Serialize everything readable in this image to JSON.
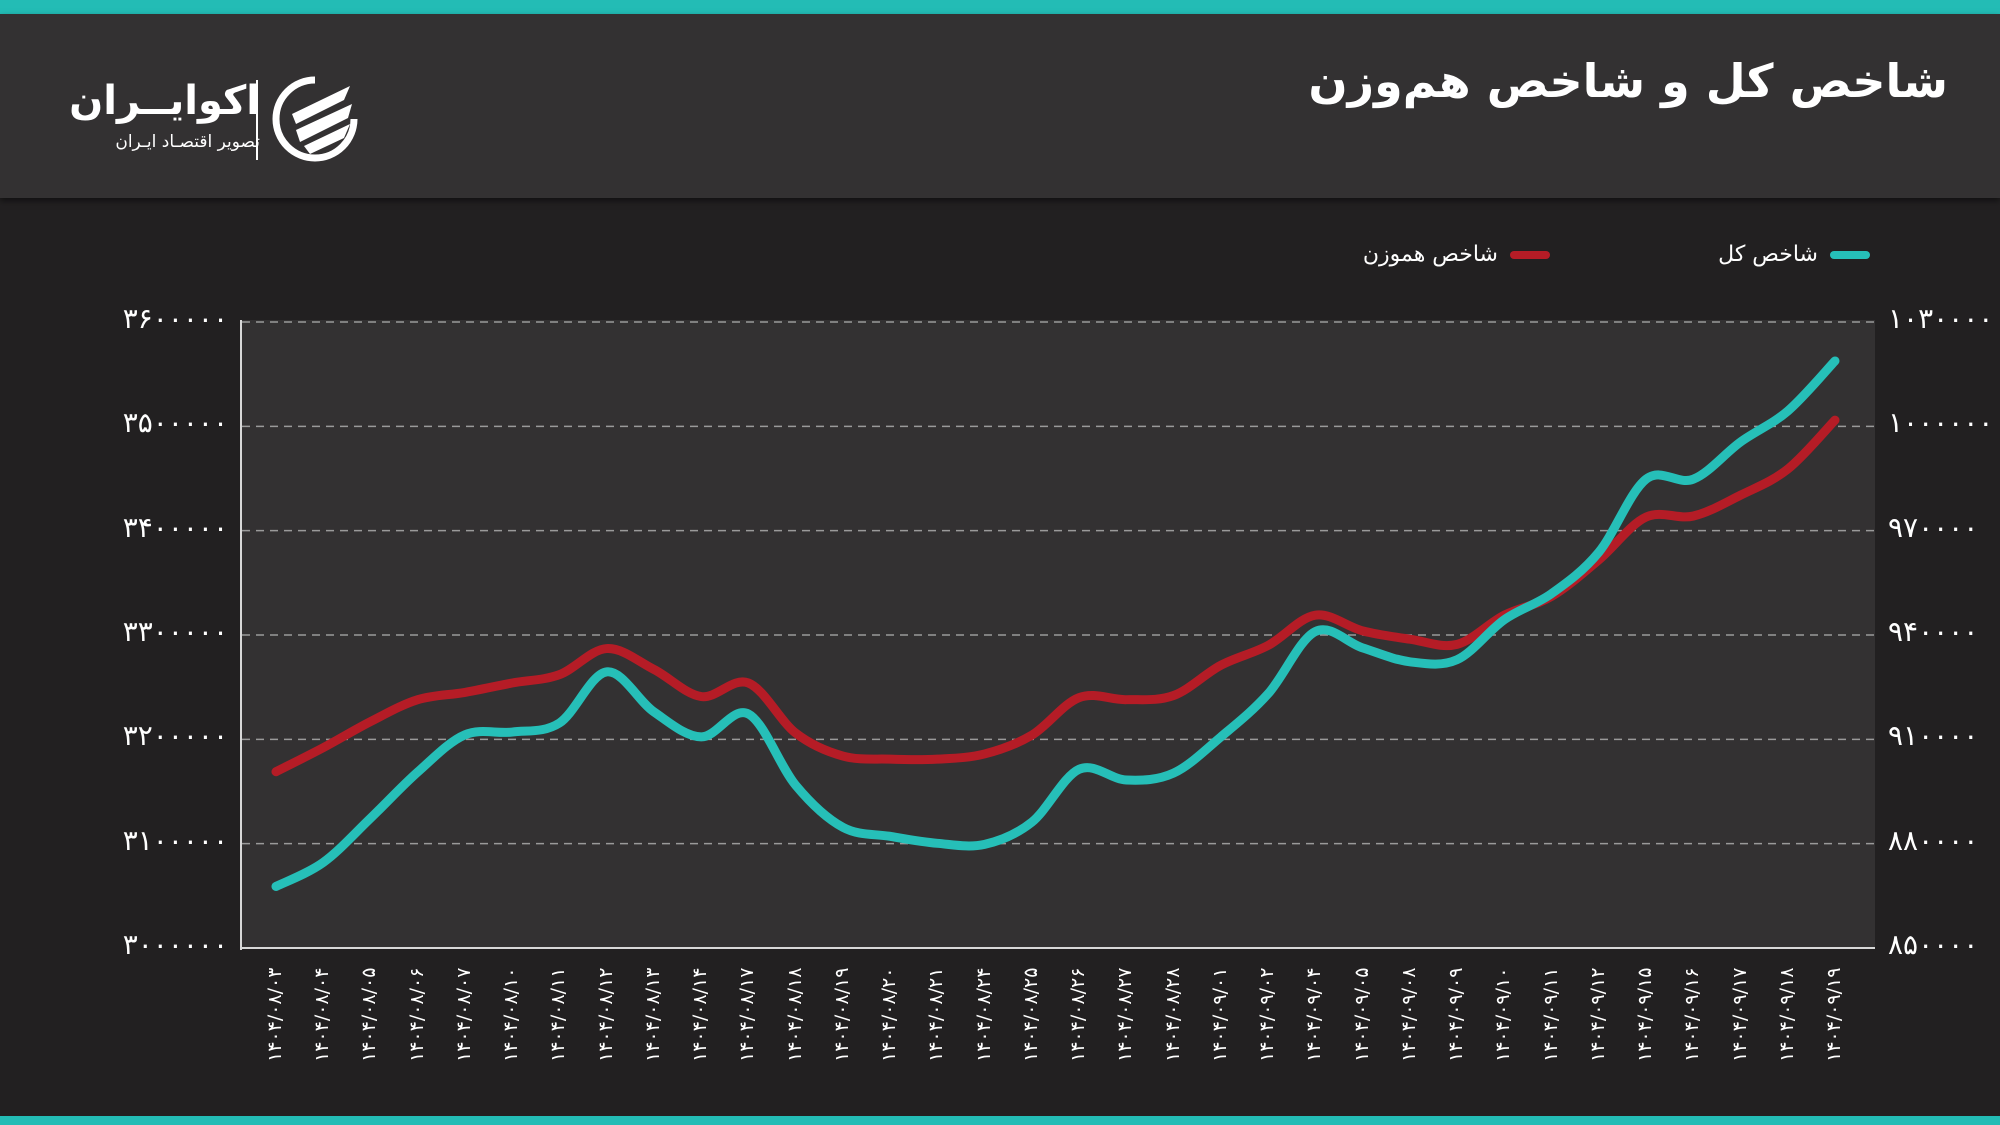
{
  "header": {
    "title": "شاخص کل و شاخص هم‌وزن",
    "logo_name": "اکوایــران",
    "logo_tagline": "تصویر اقتصـاد ایـران",
    "logo_icon": "ecoiran-logo-icon"
  },
  "colors": {
    "accent_stripe": "#23bcb5",
    "series_total": "#26bfb8",
    "series_equal_weight": "#b51c26",
    "header_bg": "#333132",
    "page_bg": "#222021",
    "plot_bg": "#333132"
  },
  "legend": [
    {
      "label": "شاخص کل",
      "color": "#26bfb8"
    },
    {
      "label": "شاخص هموزن",
      "color": "#b51c26"
    }
  ],
  "axes": {
    "left_ticks": [
      "۳۶۰۰۰۰۰",
      "۳۵۰۰۰۰۰",
      "۳۴۰۰۰۰۰",
      "۳۳۰۰۰۰۰",
      "۳۲۰۰۰۰۰",
      "۳۱۰۰۰۰۰",
      "۳۰۰۰۰۰۰"
    ],
    "right_ticks": [
      "۱۰۳۰۰۰۰",
      "۱۰۰۰۰۰۰",
      "۹۷۰۰۰۰",
      "۹۴۰۰۰۰",
      "۹۱۰۰۰۰",
      "۸۸۰۰۰۰",
      "۸۵۰۰۰۰"
    ],
    "x_ticks": [
      "۱۴۰۴/۰۸/۰۳",
      "۱۴۰۴/۰۸/۰۴",
      "۱۴۰۴/۰۸/۰۵",
      "۱۴۰۴/۰۸/۰۶",
      "۱۴۰۴/۰۸/۰۷",
      "۱۴۰۴/۰۸/۱۰",
      "۱۴۰۴/۰۸/۱۱",
      "۱۴۰۴/۰۸/۱۲",
      "۱۴۰۴/۰۸/۱۳",
      "۱۴۰۴/۰۸/۱۴",
      "۱۴۰۴/۰۸/۱۷",
      "۱۴۰۴/۰۸/۱۸",
      "۱۴۰۴/۰۸/۱۹",
      "۱۴۰۴/۰۸/۲۰",
      "۱۴۰۴/۰۸/۲۱",
      "۱۴۰۴/۰۸/۲۴",
      "۱۴۰۴/۰۸/۲۵",
      "۱۴۰۴/۰۸/۲۶",
      "۱۴۰۴/۰۸/۲۷",
      "۱۴۰۴/۰۸/۲۸",
      "۱۴۰۴/۰۹/۰۱",
      "۱۴۰۴/۰۹/۰۲",
      "۱۴۰۴/۰۹/۰۴",
      "۱۴۰۴/۰۹/۰۵",
      "۱۴۰۴/۰۹/۰۸",
      "۱۴۰۴/۰۹/۰۹",
      "۱۴۰۴/۰۹/۱۰",
      "۱۴۰۴/۰۹/۱۱",
      "۱۴۰۴/۰۹/۱۲",
      "۱۴۰۴/۰۹/۱۵",
      "۱۴۰۴/۰۹/۱۶",
      "۱۴۰۴/۰۹/۱۷",
      "۱۴۰۴/۰۹/۱۸",
      "۱۴۰۴/۰۹/۱۹"
    ]
  },
  "chart_data": {
    "type": "line",
    "title": "شاخص کل و شاخص هم‌وزن",
    "xlabel": "",
    "ylabel_left": "شاخص هموزن",
    "ylabel_right": "شاخص کل",
    "x": [
      "1404/08/03",
      "1404/08/04",
      "1404/08/05",
      "1404/08/06",
      "1404/08/07",
      "1404/08/10",
      "1404/08/11",
      "1404/08/12",
      "1404/08/13",
      "1404/08/14",
      "1404/08/17",
      "1404/08/18",
      "1404/08/19",
      "1404/08/20",
      "1404/08/21",
      "1404/08/24",
      "1404/08/25",
      "1404/08/26",
      "1404/08/27",
      "1404/08/28",
      "1404/09/01",
      "1404/09/02",
      "1404/09/04",
      "1404/09/05",
      "1404/09/08",
      "1404/09/09",
      "1404/09/10",
      "1404/09/11",
      "1404/09/12",
      "1404/09/15",
      "1404/09/16",
      "1404/09/17",
      "1404/09/18",
      "1404/09/19"
    ],
    "series": [
      {
        "name": "شاخص کل",
        "axis": "right",
        "color": "#26bfb8",
        "values": [
          867700,
          874600,
          887300,
          900600,
          911300,
          912100,
          914700,
          929400,
          917900,
          910700,
          917300,
          896800,
          884700,
          882100,
          880100,
          879800,
          886200,
          901400,
          898300,
          900300,
          910700,
          923100,
          941000,
          936300,
          932300,
          932900,
          944400,
          951900,
          963800,
          984800,
          984800,
          995500,
          1004400,
          1018800
        ]
      },
      {
        "name": "شاخص هموزن",
        "axis": "left",
        "color": "#b51c26",
        "values": [
          3169000,
          3192000,
          3217000,
          3238000,
          3245000,
          3254000,
          3262000,
          3287000,
          3267000,
          3241000,
          3254000,
          3206000,
          3184000,
          3181000,
          3181000,
          3186000,
          3204000,
          3240000,
          3238000,
          3242000,
          3271000,
          3290000,
          3319000,
          3304000,
          3296000,
          3291000,
          3319000,
          3337000,
          3372000,
          3413000,
          3414000,
          3434000,
          3459000,
          3506000
        ]
      }
    ],
    "ylim_left": [
      3000000,
      3600000
    ],
    "ylim_right": [
      850000,
      1030000
    ],
    "grid": true,
    "legend_position": "top-right"
  }
}
